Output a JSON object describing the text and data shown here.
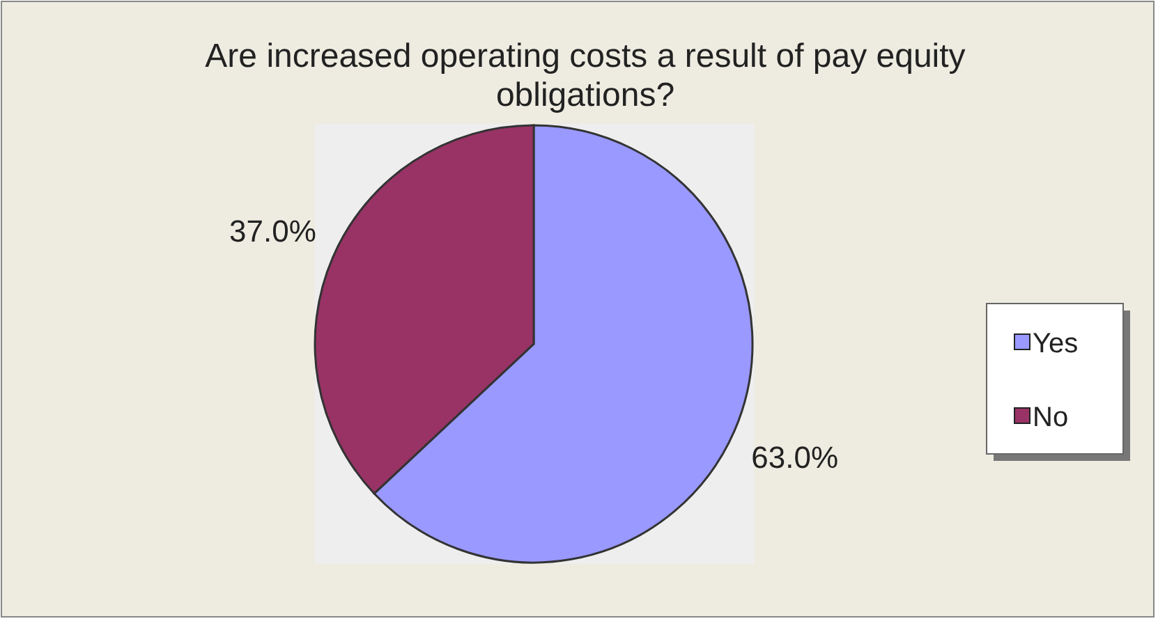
{
  "chart_data": {
    "type": "pie",
    "title": "Are increased operating costs a result of pay equity obligations?",
    "categories": [
      "Yes",
      "No"
    ],
    "values": [
      63.0,
      37.0
    ],
    "colors": [
      "#9999ff",
      "#993366"
    ],
    "value_labels": [
      "63.0%",
      "37.0%"
    ],
    "legend": "right"
  }
}
